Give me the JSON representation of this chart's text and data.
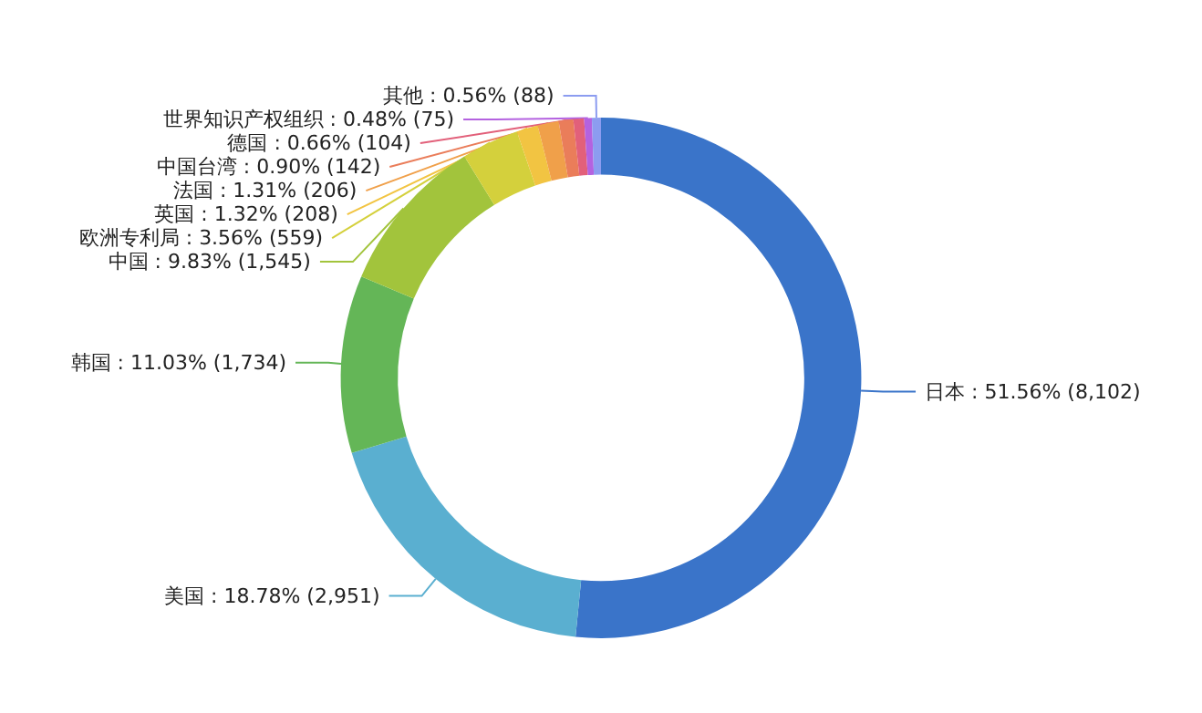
{
  "chart_data": {
    "type": "donut",
    "categories": [
      "日本",
      "美国",
      "韩国",
      "中国",
      "欧洲专利局",
      "英国",
      "法国",
      "中国台湾",
      "德国",
      "世界知识产权组织",
      "其他"
    ],
    "values": [
      8102,
      2951,
      1734,
      1545,
      559,
      208,
      206,
      142,
      104,
      75,
      88
    ],
    "value_labels": [
      "51.56% (8,102)",
      "18.78% (2,951)",
      "11.03% (1,734)",
      "9.83% (1,545)",
      "3.56% (559)",
      "1.32% (208)",
      "1.31% (206)",
      "0.90% (142)",
      "0.66% (104)",
      "0.48% (75)",
      "0.56% (88)"
    ],
    "colors": [
      "#3a74c9",
      "#5aafd0",
      "#64b657",
      "#a2c43c",
      "#d4d03c",
      "#f2c442",
      "#f0a04a",
      "#ea7d5a",
      "#e2607a",
      "#b462e0",
      "#8c9cf0"
    ],
    "legend": false
  }
}
